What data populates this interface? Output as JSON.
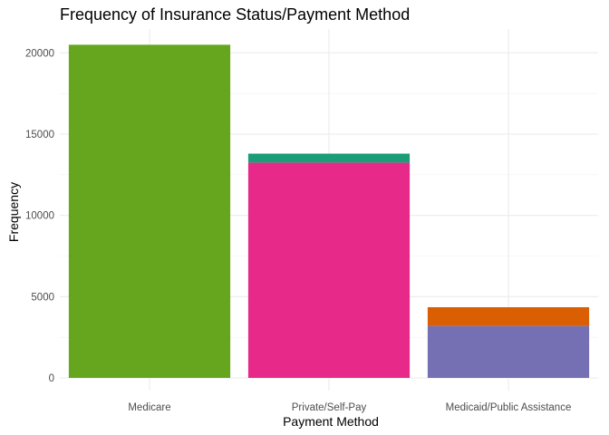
{
  "chart_data": {
    "type": "bar",
    "title": "Frequency of Insurance Status/Payment Method",
    "xlabel": "Payment Method",
    "ylabel": "Frequency",
    "categories": [
      "Medicare",
      "Private/Self-Pay",
      "Medicaid/Public Assistance"
    ],
    "stacked": true,
    "bars": [
      {
        "category": "Medicare",
        "segments": [
          {
            "value": 20500,
            "color": "#66A61E"
          }
        ]
      },
      {
        "category": "Private/Self-Pay",
        "segments": [
          {
            "value": 13250,
            "color": "#E7298A"
          },
          {
            "value": 550,
            "color": "#1B9E77"
          }
        ]
      },
      {
        "category": "Medicaid/Public Assistance",
        "segments": [
          {
            "value": 3200,
            "color": "#7570B3"
          },
          {
            "value": 1150,
            "color": "#D95F02"
          }
        ]
      }
    ],
    "yticks": [
      0,
      5000,
      10000,
      15000,
      20000
    ],
    "ytick_labels": [
      "0",
      "5000",
      "10000",
      "15000",
      "20000"
    ],
    "ylim": [
      0,
      22000
    ],
    "grid": true,
    "legend": "none"
  }
}
